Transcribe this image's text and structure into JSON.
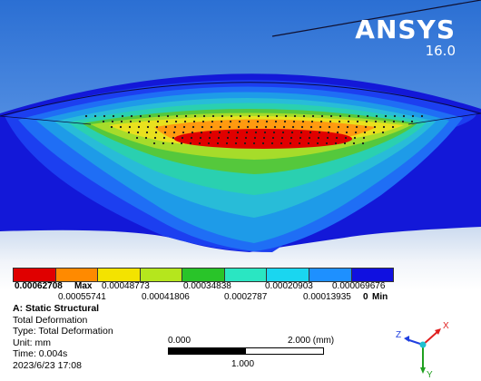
{
  "brand": {
    "name": "ANSYS",
    "version": "16.0"
  },
  "legend": {
    "colors": [
      "#e00000",
      "#ff8a00",
      "#f3e300",
      "#b5e61d",
      "#29c429",
      "#2ae6c2",
      "#1ad6f0",
      "#1e90ff",
      "#1010e0"
    ],
    "max_value": "0.00062708",
    "max_label": "Max",
    "top_values": [
      "0.00048773",
      "0.00034838",
      "0.00020903",
      "0.000069676"
    ],
    "bottom_values": [
      "0.00055741",
      "0.00041806",
      "0.0002787",
      "0.00013935"
    ],
    "min_value": "0",
    "min_label": "Min"
  },
  "info": {
    "title": "A: Static Structural",
    "line1": "Total Deformation",
    "line2": "Type: Total Deformation",
    "line3": "Unit: mm",
    "line4": "Time: 0.004s",
    "line5": "2023/6/23 17:08"
  },
  "scale": {
    "left": "0.000",
    "right": "2.000 (mm)",
    "mid": "1.000"
  },
  "axes": {
    "x": "X",
    "y": "Y",
    "z": "Z",
    "x_color": "#e02020",
    "y_color": "#20a020",
    "z_color": "#2040e0"
  }
}
